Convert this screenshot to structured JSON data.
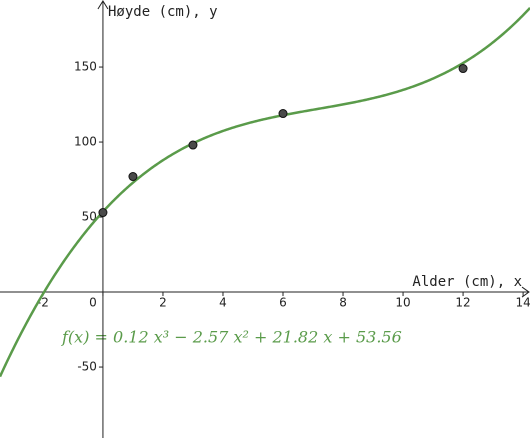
{
  "chart_data": {
    "type": "scatter",
    "x_label": "Alder (cm), x",
    "y_label": "Høyde (cm), y",
    "series": [
      {
        "color": "#4a4a4a",
        "x": [
          0,
          1,
          3,
          6,
          12
        ],
        "values": [
          53,
          77,
          98,
          119,
          149
        ]
      }
    ],
    "curve": {
      "equation": "f(x) = 0.12 x³ − 2.57 x² + 21.82 x + 53.56",
      "coefficients": [
        0.12,
        -2.57,
        21.82,
        53.56
      ],
      "color": "#5a9b4a"
    },
    "xlim": [
      -3.43,
      14.23
    ],
    "ylim": [
      -97.3,
      194.7
    ],
    "xticks": [
      -2,
      0,
      2,
      4,
      6,
      8,
      10,
      12,
      14
    ],
    "yticks": [
      -50,
      50,
      100,
      150
    ],
    "grid": false
  }
}
